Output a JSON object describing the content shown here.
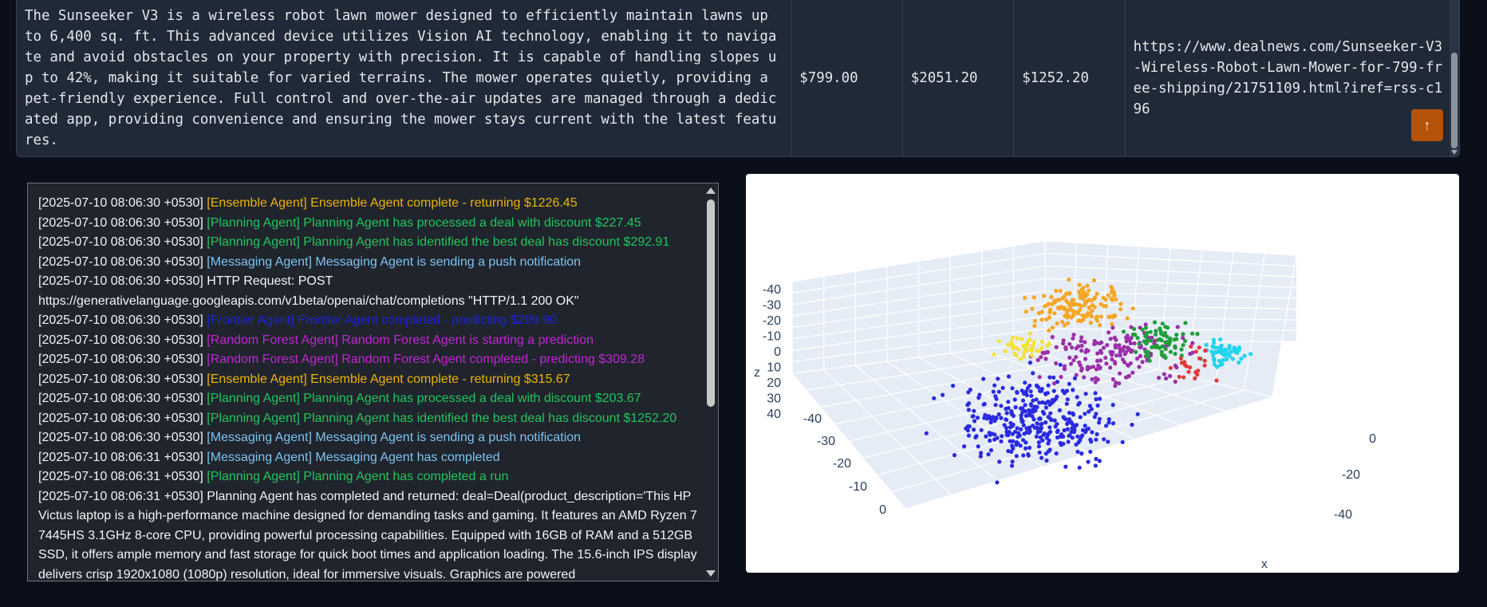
{
  "deal_row": {
    "description": "The Sunseeker V3 is a wireless robot lawn mower designed to efficiently maintain lawns up to 6,400 sq. ft. This advanced device utilizes Vision AI technology, enabling it to navigate and avoid obstacles on your property with precision. It is capable of handling slopes up to 42%, making it suitable for varied terrains. The mower operates quietly, providing a pet-friendly experience. Full control and over-the-air updates are managed through a dedicated app, providing convenience and ensuring the mower stays current with the latest features.",
    "price": "$799.00",
    "estimate": "$2051.20",
    "discount": "$1252.20",
    "url": "https://www.dealnews.com/Sunseeker-V3-Wireless-Robot-Lawn-Mower-for-799-free-shipping/21751109.html?iref=rss-c196"
  },
  "scroll_top_icon": "arrow-up-icon",
  "log": {
    "lines": [
      {
        "ts": "[2025-07-10 08:06:30 +0530]",
        "msg": "[Ensemble Agent] Ensemble Agent complete - returning $1226.45",
        "color": "#eab308"
      },
      {
        "ts": "[2025-07-10 08:06:30 +0530]",
        "msg": "[Planning Agent] Planning Agent has processed a deal with discount $227.45",
        "color": "#22c55e"
      },
      {
        "ts": "[2025-07-10 08:06:30 +0530]",
        "msg": "[Planning Agent] Planning Agent has identified the best deal has discount $292.91",
        "color": "#22c55e"
      },
      {
        "ts": "[2025-07-10 08:06:30 +0530]",
        "msg": "[Messaging Agent] Messaging Agent is sending a push notification",
        "color": "#7dc4f0"
      },
      {
        "ts": "[2025-07-10 08:06:30 +0530]",
        "msg": "HTTP Request: POST https://generativelanguage.googleapis.com/v1beta/openai/chat/completions \"HTTP/1.1 200 OK\"",
        "color": "#f3f4f6"
      },
      {
        "ts": "[2025-07-10 08:06:30 +0530]",
        "msg": "[Frontier Agent] Frontier Agent completed - predicting $299.90",
        "color": "#1d24d6"
      },
      {
        "ts": "[2025-07-10 08:06:30 +0530]",
        "msg": "[Random Forest Agent] Random Forest Agent is starting a prediction",
        "color": "#c026d3"
      },
      {
        "ts": "[2025-07-10 08:06:30 +0530]",
        "msg": "[Random Forest Agent] Random Forest Agent completed - predicting $309.28",
        "color": "#c026d3"
      },
      {
        "ts": "[2025-07-10 08:06:30 +0530]",
        "msg": "[Ensemble Agent] Ensemble Agent complete - returning $315.67",
        "color": "#eab308"
      },
      {
        "ts": "[2025-07-10 08:06:30 +0530]",
        "msg": "[Planning Agent] Planning Agent has processed a deal with discount $203.67",
        "color": "#22c55e"
      },
      {
        "ts": "[2025-07-10 08:06:30 +0530]",
        "msg": "[Planning Agent] Planning Agent has identified the best deal has discount $1252.20",
        "color": "#22c55e"
      },
      {
        "ts": "[2025-07-10 08:06:30 +0530]",
        "msg": "[Messaging Agent] Messaging Agent is sending a push notification",
        "color": "#7dc4f0"
      },
      {
        "ts": "[2025-07-10 08:06:31 +0530]",
        "msg": "[Messaging Agent] Messaging Agent has completed",
        "color": "#7dc4f0"
      },
      {
        "ts": "[2025-07-10 08:06:31 +0530]",
        "msg": "[Planning Agent] Planning Agent has completed a run",
        "color": "#22c55e"
      },
      {
        "ts": "[2025-07-10 08:06:31 +0530]",
        "msg": "Planning Agent has completed and returned: deal=Deal(product_description='This HP Victus laptop is a high-performance machine designed for demanding tasks and gaming. It features an AMD Ryzen 7 7445HS 3.1GHz 8-core CPU, providing powerful processing capabilities. Equipped with 16GB of RAM and a 512GB SSD, it offers ample memory and fast storage for quick boot times and application loading. The 15.6-inch IPS display delivers crisp 1920x1080 (1080p) resolution, ideal for immersive visuals. Graphics are powered",
        "color": "#f3f4f6"
      }
    ]
  },
  "chart_data": {
    "type": "scatter3d",
    "axes": {
      "x": {
        "label": "x",
        "ticks": [
          "-40",
          "-20",
          "0"
        ]
      },
      "y": {
        "label": "",
        "ticks": [
          "-40",
          "-30",
          "-20",
          "-10",
          "0"
        ]
      },
      "z": {
        "label": "z",
        "ticks": [
          "-40",
          "-30",
          "-20",
          "-10",
          "0",
          "10",
          "20",
          "30",
          "40"
        ]
      }
    },
    "series_colors": [
      "#2a2ae0",
      "#f5a623",
      "#9b30a8",
      "#1f9e3a",
      "#22d3ee",
      "#f2e23a",
      "#e03a3a"
    ],
    "grid": true,
    "background": "#e5ecf6"
  }
}
